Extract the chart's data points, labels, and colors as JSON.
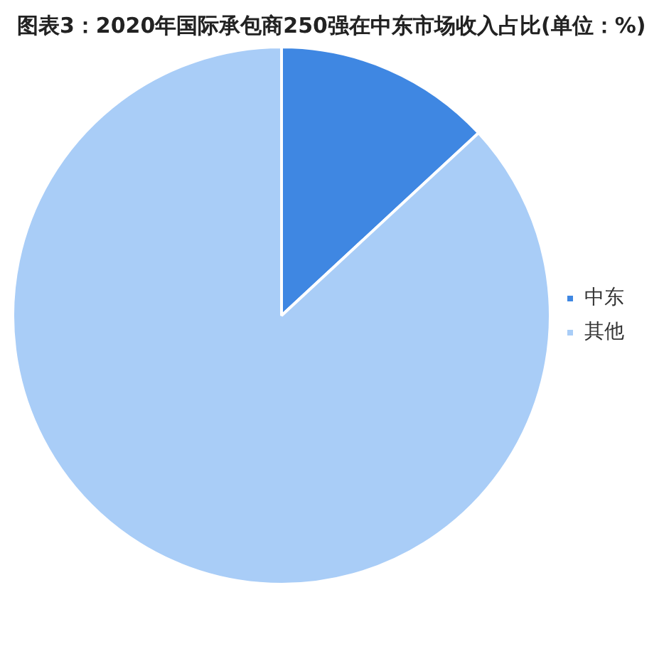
{
  "chart_data": {
    "type": "pie",
    "title": "图表3：2020年国际承包商250强在中东市场收入占比(单位：%)",
    "categories": [
      "中东",
      "其他"
    ],
    "values": [
      13.1,
      86.9
    ],
    "colors": [
      "#3f87e2",
      "#a9cdf7"
    ],
    "legend": "right"
  }
}
